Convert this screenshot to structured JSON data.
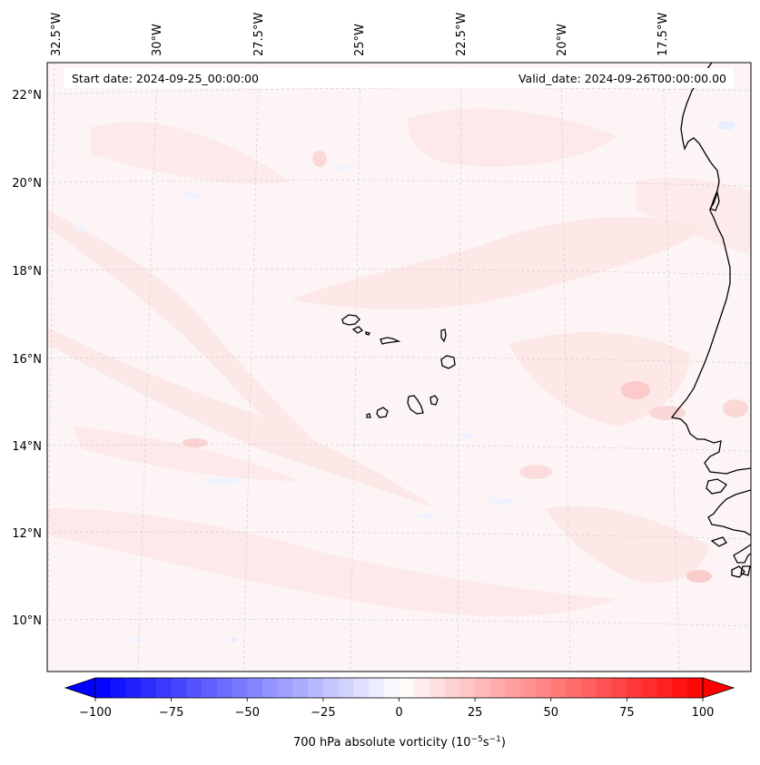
{
  "map": {
    "info": {
      "start_date": "Start date: 2024-09-25_00:00:00",
      "valid_date": "Valid_date: 2024-09-26T00:00:00.00"
    },
    "lon_labels": [
      "32.5°W",
      "30°W",
      "27.5°W",
      "25°W",
      "22.5°W",
      "20°W",
      "17.5°W"
    ],
    "lat_labels": [
      "22°N",
      "20°N",
      "18°N",
      "16°N",
      "14°N",
      "12°N",
      "10°N"
    ]
  },
  "colorbar": {
    "label": "700 hPa absolute vorticity (10",
    "label_exp1": "−5",
    "label_mid": "s",
    "label_exp2": "−1",
    "label_end": ")",
    "ticks": [
      "−100",
      "−75",
      "−50",
      "−25",
      "0",
      "25",
      "50",
      "75",
      "100"
    ],
    "min_color": "#0000ff",
    "mid_color": "#ffffff",
    "max_color": "#ff0000",
    "extend": "both"
  },
  "colors": {
    "field_base": "#fdf5f5",
    "field_light": "#fde6e6",
    "field_medium": "#fbd6d6",
    "field_blue": "#eef2ff",
    "coast": "#000000",
    "grid": "#c8c8c8"
  }
}
